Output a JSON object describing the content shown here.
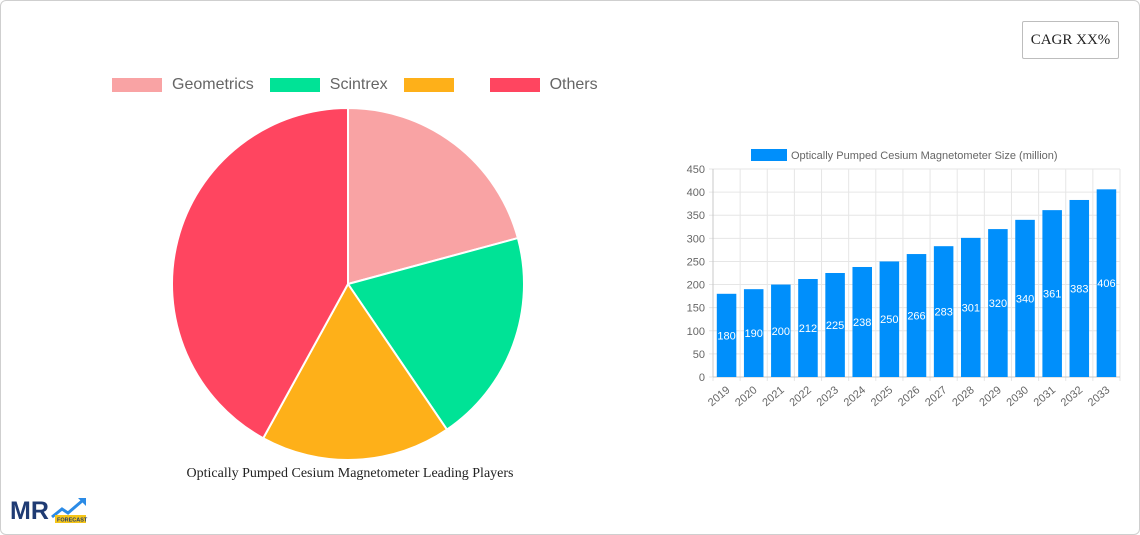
{
  "cagr_badge": "CAGR XX%",
  "colors": {
    "geometrics": "#f9a3a4",
    "scintrex": "#00e396",
    "unnamed": "#feb019",
    "others": "#ff4560",
    "bar": "#008ffb"
  },
  "logo": {
    "text": "MR",
    "subtext": "FORECAST"
  },
  "chart_data": [
    {
      "type": "pie",
      "title": "Optically Pumped Cesium Magnetometer Leading Players",
      "legend_position": "top",
      "categories": [
        "Geometrics",
        "Scintrex",
        "",
        "Others"
      ],
      "values": [
        20.8,
        19.7,
        17.5,
        42.0
      ],
      "colors": [
        "#f9a3a4",
        "#00e396",
        "#feb019",
        "#ff4560"
      ]
    },
    {
      "type": "bar",
      "title": "",
      "legend": [
        "Optically Pumped Cesium Magnetometer Size (million)"
      ],
      "legend_position": "top",
      "xlabel": "",
      "ylabel": "",
      "ylim": [
        0,
        450
      ],
      "yticks": [
        0,
        50,
        100,
        150,
        200,
        250,
        300,
        350,
        400,
        450
      ],
      "grid": true,
      "categories": [
        "2019",
        "2020",
        "2021",
        "2022",
        "2023",
        "2024",
        "2025",
        "2026",
        "2027",
        "2028",
        "2029",
        "2030",
        "2031",
        "2032",
        "2033"
      ],
      "series": [
        {
          "name": "Optically Pumped Cesium Magnetometer Size (million)",
          "values": [
            180,
            190,
            200,
            212,
            225,
            238,
            250,
            266,
            283,
            301,
            320,
            340,
            361,
            383,
            406
          ],
          "color": "#008ffb"
        }
      ]
    }
  ]
}
